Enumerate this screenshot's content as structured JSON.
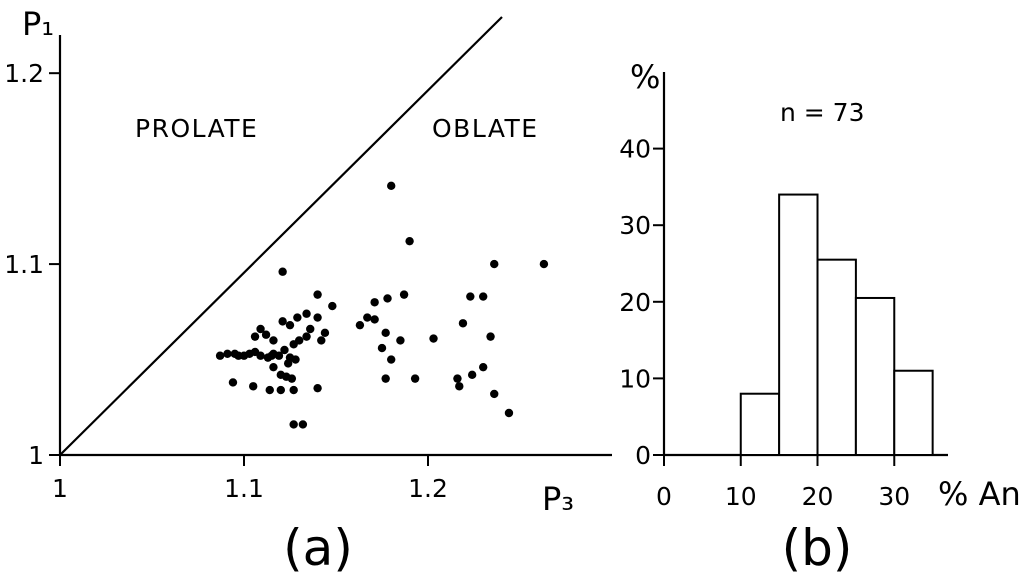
{
  "chart_data": [
    {
      "type": "scatter",
      "panel_label": "(a)",
      "xlabel": "P₃",
      "ylabel": "P₁",
      "xlim": [
        1.0,
        1.3
      ],
      "ylim": [
        1.0,
        1.22
      ],
      "x_ticks": [
        1.0,
        1.1,
        1.2
      ],
      "y_ticks": [
        1.0,
        1.1,
        1.2
      ],
      "x_tick_labels": [
        "1",
        "1.1",
        "1.2"
      ],
      "y_tick_labels": [
        "1",
        "1.1",
        "1.2"
      ],
      "reference_line": "P1 = P3",
      "region_labels": [
        "PROLATE",
        "OBLATE"
      ],
      "grid": false,
      "points": [
        [
          1.087,
          1.052
        ],
        [
          1.091,
          1.053
        ],
        [
          1.095,
          1.053
        ],
        [
          1.097,
          1.052
        ],
        [
          1.1,
          1.052
        ],
        [
          1.103,
          1.053
        ],
        [
          1.106,
          1.054
        ],
        [
          1.109,
          1.052
        ],
        [
          1.113,
          1.051
        ],
        [
          1.116,
          1.053
        ],
        [
          1.119,
          1.052
        ],
        [
          1.122,
          1.055
        ],
        [
          1.125,
          1.051
        ],
        [
          1.128,
          1.05
        ],
        [
          1.124,
          1.048
        ],
        [
          1.106,
          1.062
        ],
        [
          1.109,
          1.066
        ],
        [
          1.112,
          1.063
        ],
        [
          1.116,
          1.06
        ],
        [
          1.121,
          1.07
        ],
        [
          1.125,
          1.068
        ],
        [
          1.127,
          1.058
        ],
        [
          1.13,
          1.06
        ],
        [
          1.134,
          1.062
        ],
        [
          1.134,
          1.074
        ],
        [
          1.136,
          1.066
        ],
        [
          1.14,
          1.072
        ],
        [
          1.142,
          1.06
        ],
        [
          1.144,
          1.064
        ],
        [
          1.148,
          1.078
        ],
        [
          1.14,
          1.084
        ],
        [
          1.129,
          1.072
        ],
        [
          1.121,
          1.096
        ],
        [
          1.115,
          1.052
        ],
        [
          1.116,
          1.046
        ],
        [
          1.12,
          1.042
        ],
        [
          1.123,
          1.041
        ],
        [
          1.126,
          1.04
        ],
        [
          1.12,
          1.034
        ],
        [
          1.127,
          1.034
        ],
        [
          1.114,
          1.034
        ],
        [
          1.105,
          1.036
        ],
        [
          1.094,
          1.038
        ],
        [
          1.14,
          1.035
        ],
        [
          1.127,
          1.016
        ],
        [
          1.132,
          1.016
        ],
        [
          1.163,
          1.068
        ],
        [
          1.167,
          1.072
        ],
        [
          1.171,
          1.071
        ],
        [
          1.171,
          1.08
        ],
        [
          1.178,
          1.082
        ],
        [
          1.177,
          1.064
        ],
        [
          1.175,
          1.056
        ],
        [
          1.18,
          1.05
        ],
        [
          1.185,
          1.06
        ],
        [
          1.187,
          1.084
        ],
        [
          1.19,
          1.112
        ],
        [
          1.18,
          1.141
        ],
        [
          1.193,
          1.04
        ],
        [
          1.177,
          1.04
        ],
        [
          1.203,
          1.061
        ],
        [
          1.216,
          1.04
        ],
        [
          1.217,
          1.036
        ],
        [
          1.219,
          1.069
        ],
        [
          1.223,
          1.083
        ],
        [
          1.23,
          1.083
        ],
        [
          1.224,
          1.042
        ],
        [
          1.23,
          1.046
        ],
        [
          1.234,
          1.062
        ],
        [
          1.236,
          1.1
        ],
        [
          1.236,
          1.032
        ],
        [
          1.244,
          1.022
        ],
        [
          1.263,
          1.1
        ]
      ]
    },
    {
      "type": "bar",
      "panel_label": "(b)",
      "ylabel": "%",
      "xlabel": "% An",
      "annotation": "n = 73",
      "bin_edges": [
        10,
        15,
        20,
        25,
        30,
        35
      ],
      "values": [
        8,
        34,
        25.5,
        20.5,
        11
      ],
      "xlim": [
        0,
        37
      ],
      "ylim": [
        0,
        50
      ],
      "x_ticks": [
        0,
        10,
        20,
        30
      ],
      "y_ticks": [
        0,
        10,
        20,
        30,
        40
      ],
      "x_tick_labels": [
        "0",
        "10",
        "20",
        "30"
      ],
      "y_tick_labels": [
        "0",
        "10",
        "20",
        "30",
        "40"
      ],
      "grid": false
    }
  ]
}
